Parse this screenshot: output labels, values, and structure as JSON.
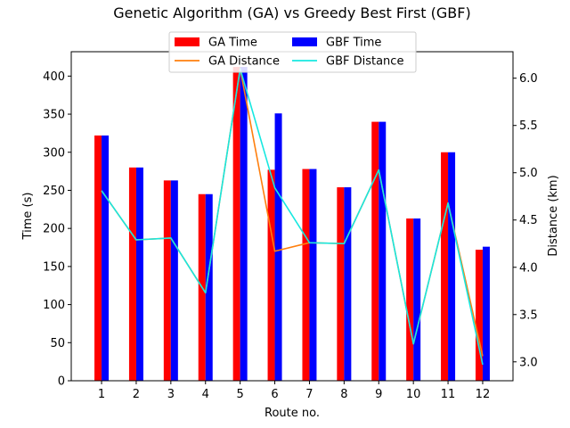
{
  "chart_data": {
    "type": "bar",
    "title": "Genetic Algorithm (GA) vs Greedy Best First (GBF)",
    "xlabel": "Route no.",
    "ylabel": "Time (s)",
    "y2label": "Distance (km)",
    "categories": [
      "1",
      "2",
      "3",
      "4",
      "5",
      "6",
      "7",
      "8",
      "9",
      "10",
      "11",
      "12"
    ],
    "ylim": [
      0,
      432
    ],
    "y2lim": [
      2.8,
      6.28
    ],
    "yticks": [
      0,
      50,
      100,
      150,
      200,
      250,
      300,
      350,
      400
    ],
    "y2ticks": [
      3.0,
      3.5,
      4.0,
      4.5,
      5.0,
      5.5,
      6.0
    ],
    "bar_series": [
      {
        "name": "GA Time",
        "color": "#ff0000",
        "values": [
          322,
          280,
          263,
          245,
          412,
          277,
          278,
          254,
          340,
          213,
          300,
          172
        ]
      },
      {
        "name": "GBF Time",
        "color": "#0000ff",
        "values": [
          322,
          280,
          263,
          245,
          412,
          351,
          278,
          254,
          340,
          213,
          300,
          176
        ]
      }
    ],
    "line_series": [
      {
        "name": "GA Distance",
        "color": "#ff7f0e",
        "values": [
          4.81,
          4.29,
          4.31,
          3.73,
          6.1,
          4.17,
          4.26,
          4.25,
          5.03,
          3.19,
          4.68,
          3.06
        ]
      },
      {
        "name": "GBF Distance",
        "color": "#17e8e0",
        "values": [
          4.81,
          4.29,
          4.31,
          3.73,
          6.1,
          4.84,
          4.26,
          4.25,
          5.03,
          3.19,
          4.68,
          2.97
        ]
      }
    ],
    "legend_position": "top-center",
    "legend_order": [
      "GA Time",
      "GA Distance",
      "GBF Time",
      "GBF Distance"
    ],
    "grid": false
  }
}
